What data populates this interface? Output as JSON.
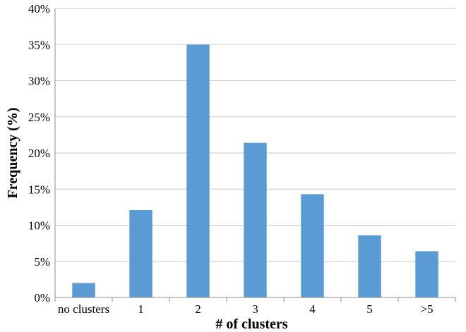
{
  "chart_data": {
    "type": "bar",
    "categories": [
      "no clusters",
      "1",
      "2",
      "3",
      "4",
      "5",
      ">5"
    ],
    "values": [
      2.0,
      12.1,
      35.0,
      21.4,
      14.3,
      8.6,
      6.4
    ],
    "xlabel": "# of clusters",
    "ylabel": "Frequency (%)",
    "ylim": [
      0,
      40
    ],
    "yticks": [
      0,
      5,
      10,
      15,
      20,
      25,
      30,
      35,
      40
    ],
    "ytick_format": "%",
    "grid": true,
    "bar_color": "#5b9bd5"
  }
}
